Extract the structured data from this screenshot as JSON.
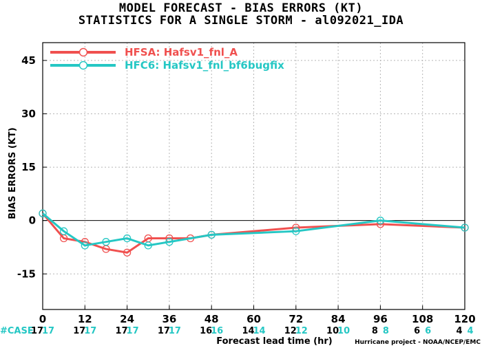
{
  "chart_data": {
    "type": "line",
    "title": "MODEL FORECAST - BIAS ERRORS (KT)",
    "subtitle": "STATISTICS FOR A SINGLE STORM - al092021_IDA",
    "xlabel": "Forecast lead time (hr)",
    "ylabel": "BIAS ERRORS (KT)",
    "xlim": [
      0,
      120
    ],
    "ylim": [
      -25,
      50
    ],
    "x_ticks": [
      0,
      12,
      24,
      36,
      48,
      60,
      72,
      84,
      96,
      108,
      120
    ],
    "y_ticks": [
      45,
      30,
      15,
      0,
      -15
    ],
    "grid": true,
    "legend_position": "top-left",
    "series": [
      {
        "name": "HFSA: Hafsv1_fnl_A",
        "color": "#f0504f",
        "x": [
          0,
          6,
          12,
          18,
          24,
          30,
          36,
          42,
          48,
          72,
          96,
          120
        ],
        "y": [
          2,
          -5,
          -6,
          -8,
          -9,
          -5,
          -5,
          -5,
          -4,
          -2,
          -1,
          -2
        ]
      },
      {
        "name": "HFC6: Hafsv1_fnl_bf6bugfix",
        "color": "#25c7c4",
        "x": [
          0,
          6,
          12,
          18,
          24,
          30,
          36,
          48,
          72,
          96,
          120
        ],
        "y": [
          2,
          -3,
          -7,
          -6,
          -5,
          -7,
          -6,
          -4,
          -3,
          0,
          -2
        ]
      }
    ],
    "case_row": {
      "label": "#CASE",
      "label_color": "#25c7c4",
      "hours": [
        0,
        12,
        24,
        36,
        48,
        60,
        72,
        84,
        96,
        108,
        120
      ],
      "series_counts": [
        {
          "color": "#000000",
          "values": [
            "17",
            "17",
            "17",
            "17",
            "16",
            "14",
            "12",
            "10",
            "8",
            "6",
            "4"
          ]
        },
        {
          "color": "#25c7c4",
          "values": [
            "17",
            "17",
            "17",
            "17",
            "16",
            "14",
            "12",
            "10",
            "8",
            "6",
            "4"
          ]
        }
      ]
    },
    "credit": "Hurricane project - NOAA/NCEP/EMC"
  }
}
